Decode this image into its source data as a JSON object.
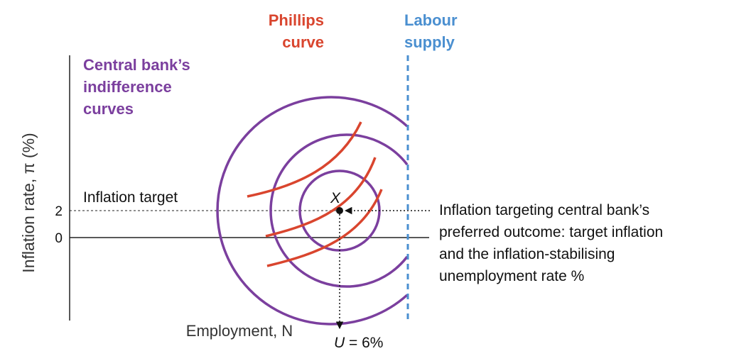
{
  "axes": {
    "ylabel": "Inflation rate, π (%)",
    "xlabel": "Employment, N",
    "yticks": [
      "2",
      "0"
    ]
  },
  "labels": {
    "phillips_line1": "Phillips",
    "phillips_line2": "curve",
    "labour_line1": "Labour",
    "labour_line2": "supply",
    "cb_line1": "Central bank’s",
    "cb_line2": "indifference",
    "cb_line3": "curves",
    "inflation_target": "Inflation target",
    "point_x": "X",
    "u_letter": "U",
    "u_value": " = 6%",
    "annotation": [
      "Inflation targeting central bank’s",
      "preferred outcome: target inflation",
      "and the inflation-stabilising",
      "unemployment rate %"
    ]
  },
  "colors": {
    "phillips": "#d9452e",
    "indifference": "#7b3f9e",
    "labour": "#4a8fd0",
    "axis": "#222222",
    "text": "#111111"
  }
}
